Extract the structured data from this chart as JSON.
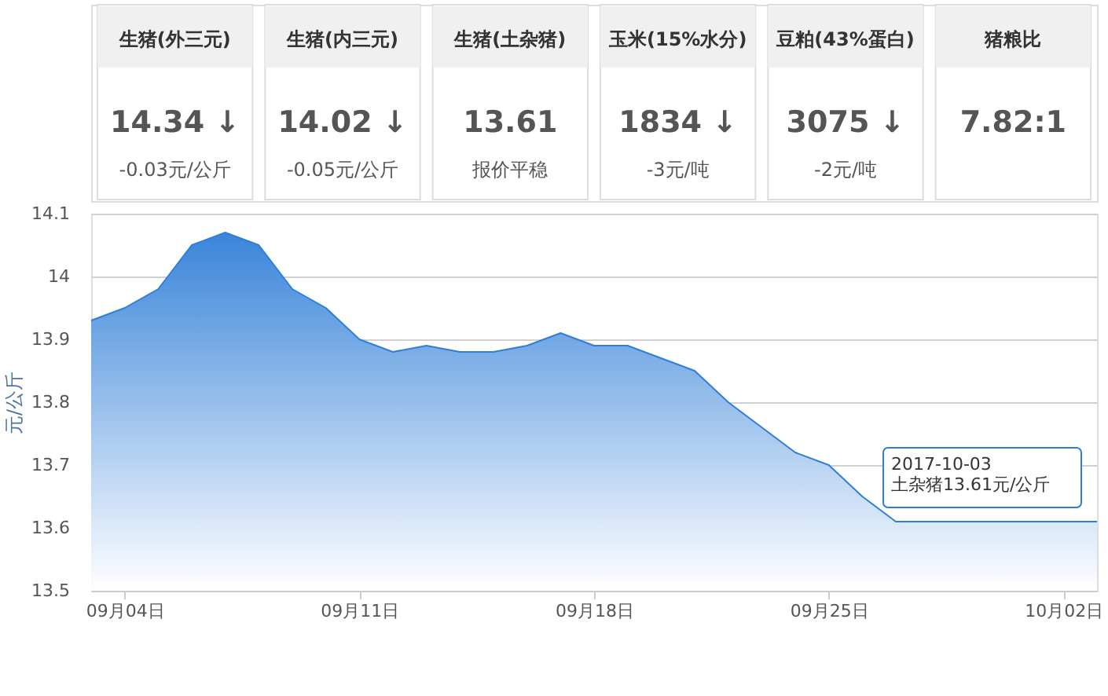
{
  "chart_data": [
    {
      "type": "other",
      "categories": [
        "生猪(外三元)",
        "生猪(内三元)",
        "生猪(土杂猪)",
        "玉米(15%水分)",
        "豆粕(43%蛋白)",
        "猪粮比"
      ],
      "annotations": [
        "14.34 ↓",
        "14.02 ↓",
        "13.61",
        "1834  ↓",
        "3075  ↓",
        "7.82:1",
        "-0.03元/公斤",
        "-0.05元/公斤",
        "报价平稳",
        "-3元/吨",
        "-2元/吨"
      ]
    },
    {
      "type": "area",
      "ylabel": "元/公斤",
      "x": [
        "2017-09-03",
        "2017-09-04",
        "2017-09-05",
        "2017-09-06",
        "2017-09-07",
        "2017-09-08",
        "2017-09-09",
        "2017-09-10",
        "2017-09-11",
        "2017-09-12",
        "2017-09-13",
        "2017-09-14",
        "2017-09-15",
        "2017-09-16",
        "2017-09-17",
        "2017-09-18",
        "2017-09-19",
        "2017-09-20",
        "2017-09-21",
        "2017-09-22",
        "2017-09-23",
        "2017-09-24",
        "2017-09-25",
        "2017-09-26",
        "2017-09-27",
        "2017-09-28",
        "2017-09-29",
        "2017-09-30",
        "2017-10-01",
        "2017-10-02",
        "2017-10-03"
      ],
      "series": [
        {
          "color": "#2f7ed8",
          "values": [
            13.93,
            13.95,
            13.98,
            14.05,
            14.07,
            14.05,
            13.98,
            13.95,
            13.9,
            13.88,
            13.89,
            13.88,
            13.88,
            13.89,
            13.91,
            13.89,
            13.89,
            13.87,
            13.85,
            13.8,
            13.76,
            13.72,
            13.7,
            13.65,
            13.61,
            13.61,
            13.61,
            13.61,
            13.61,
            13.61,
            13.61
          ]
        }
      ],
      "xlim": [
        "2017-09-03",
        "2017-10-03"
      ],
      "xticks": [
        {
          "value": "2017-09-04",
          "label": "09月04日"
        },
        {
          "value": "2017-09-11",
          "label": "09月11日"
        },
        {
          "value": "2017-09-18",
          "label": "09月18日"
        },
        {
          "value": "2017-09-25",
          "label": "09月25日"
        },
        {
          "value": "2017-10-02",
          "label": "10月02日"
        }
      ],
      "ylim": [
        13.5,
        14.1
      ],
      "yticks": [
        13.5,
        13.6,
        13.7,
        13.8,
        13.9,
        14,
        14.1
      ],
      "grid": "y",
      "legend": false,
      "annotations": [
        "2017-10-03\n土杂猪13.61元/公斤"
      ]
    }
  ]
}
